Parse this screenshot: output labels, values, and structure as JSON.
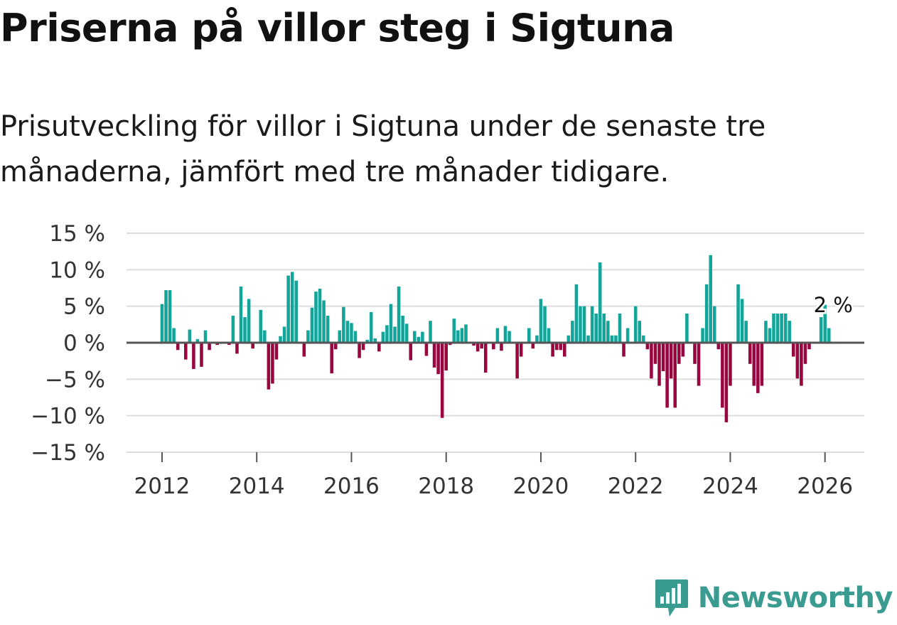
{
  "title": "Priserna på villor steg i Sigtuna",
  "subtitle": "Prisutveckling för villor i Sigtuna under de senaste tre månaderna, jämfört med tre månader tidigare.",
  "brand": {
    "name": "Newsworthy",
    "icon": "newsworthy-logo-icon"
  },
  "colors": {
    "positive": "#13a59a",
    "negative": "#98053f",
    "grid": "#dedede",
    "zero_line": "#555555",
    "brand": "#3a9b91"
  },
  "chart_data": {
    "type": "bar",
    "title": "Priserna på villor steg i Sigtuna",
    "xlabel": "",
    "ylabel": "",
    "unit": "%",
    "y_ticks": [
      15,
      10,
      5,
      0,
      -5,
      -10,
      -15
    ],
    "y_tick_labels": [
      "15 %",
      "10 %",
      "5 %",
      "0 %",
      "−5 %",
      "−10 %",
      "−15 %"
    ],
    "x_ticks": [
      2012,
      2014,
      2016,
      2018,
      2020,
      2022,
      2024,
      2026
    ],
    "x_tick_labels": [
      "2012",
      "2014",
      "2016",
      "2018",
      "2020",
      "2022",
      "2024",
      "2026"
    ],
    "ylim": [
      -15,
      15
    ],
    "xlim": [
      2011.25,
      2026.83
    ],
    "grid": true,
    "start": {
      "year": 2012,
      "month": 1
    },
    "last_value_label": "2 %",
    "values": [
      5.3,
      7.2,
      7.2,
      2.0,
      -1.0,
      0,
      -2.3,
      1.8,
      -3.6,
      0.5,
      -3.3,
      1.7,
      -1.0,
      0,
      -0.3,
      0,
      0,
      -0.3,
      3.7,
      -1.5,
      7.7,
      3.5,
      6.0,
      -0.8,
      0,
      4.5,
      1.7,
      -6.4,
      -5.6,
      -2.3,
      0.9,
      2.2,
      9.2,
      9.7,
      8.5,
      0,
      -1.9,
      1.7,
      4.8,
      7.0,
      7.4,
      5.8,
      3.7,
      -4.2,
      -0.9,
      1.7,
      4.9,
      3.0,
      2.7,
      1.6,
      -2.1,
      -1.0,
      0.4,
      4.2,
      0.6,
      -1.2,
      1.5,
      2.4,
      5.3,
      2.2,
      7.7,
      3.7,
      2.6,
      -2.4,
      1.6,
      0.8,
      1.5,
      -1.8,
      3.0,
      -3.4,
      -4.3,
      -10.3,
      -3.8,
      -0.3,
      3.3,
      1.7,
      2.0,
      2.5,
      0,
      -0.4,
      -1.2,
      -0.8,
      -4.1,
      0,
      -0.9,
      2.0,
      -1.1,
      2.3,
      1.6,
      0,
      -4.9,
      -1.9,
      0,
      2.0,
      -0.8,
      1.0,
      6.0,
      5.0,
      2.0,
      -1.9,
      -1.0,
      -1.0,
      -1.9,
      1.0,
      3.0,
      8.0,
      5.0,
      5.0,
      1.0,
      5.0,
      4.0,
      11.0,
      4.0,
      3.0,
      1.0,
      1.0,
      4.0,
      -1.9,
      2.0,
      0,
      5.0,
      3.0,
      1.0,
      -0.9,
      -4.9,
      -2.9,
      -5.9,
      -3.9,
      -8.9,
      -4.9,
      -8.9,
      -2.9,
      -1.9,
      4.0,
      0,
      -2.9,
      -5.9,
      2.0,
      8.0,
      12.0,
      5.0,
      -0.9,
      -8.9,
      -10.9,
      -5.9,
      0,
      8.0,
      6.0,
      3.0,
      -2.9,
      -5.9,
      -6.9,
      -5.9,
      3.0,
      2.0,
      4.0,
      4.0,
      4.0,
      4.0,
      3.0,
      -1.9,
      -4.9,
      -5.9,
      -2.9,
      -0.9,
      0,
      0,
      3.5,
      5.2,
      2.0
    ]
  }
}
